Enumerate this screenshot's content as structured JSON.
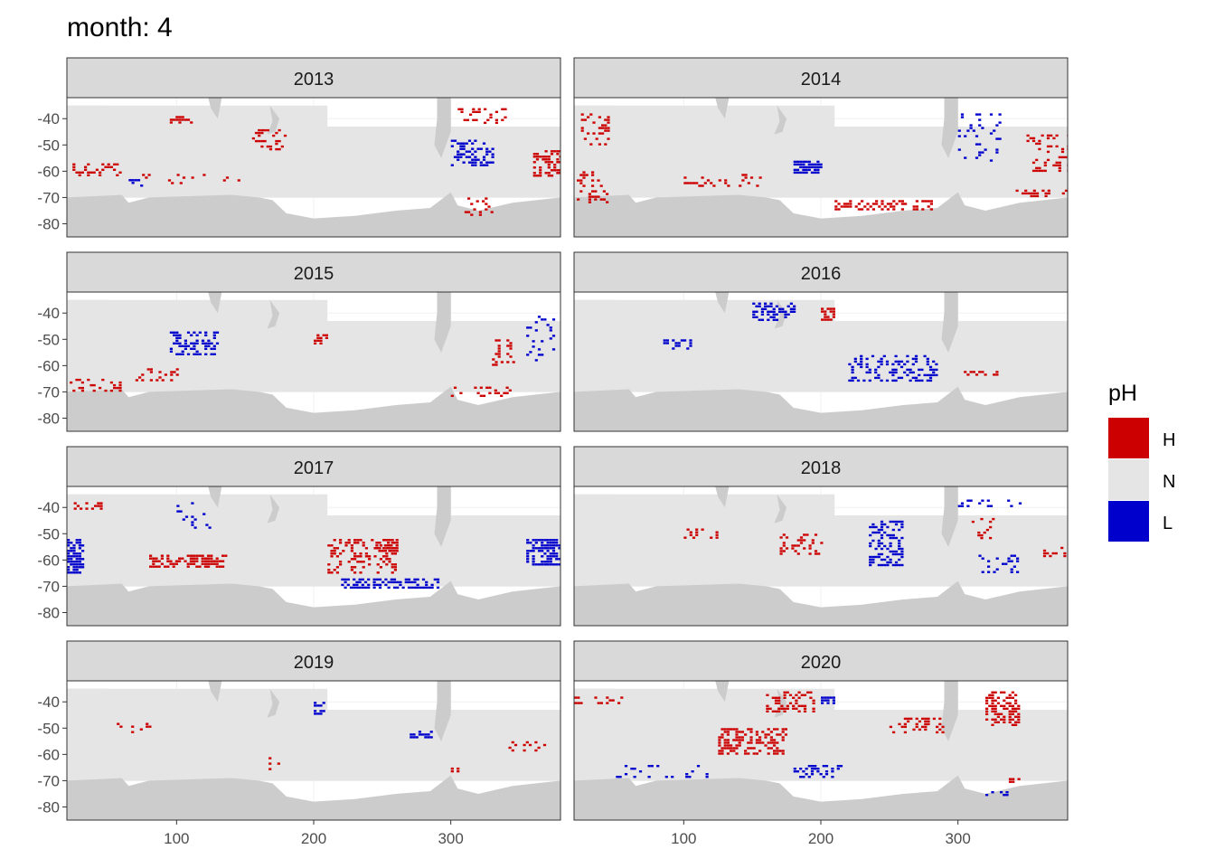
{
  "chart_data": {
    "type": "heatmap",
    "title": "month: 4",
    "facet_var": "year",
    "facets": [
      "2013",
      "2014",
      "2015",
      "2016",
      "2017",
      "2018",
      "2019",
      "2020"
    ],
    "xlim": [
      20,
      380
    ],
    "ylim": [
      -85,
      -32
    ],
    "x_ticks": [
      100,
      200,
      300
    ],
    "x_tick_labels": [
      "100",
      "200",
      "300"
    ],
    "y_ticks": [
      -40,
      -50,
      -60,
      -70,
      -80
    ],
    "y_tick_labels": [
      "-40",
      "-50",
      "-60",
      "-70",
      "-80"
    ],
    "legend": {
      "title": "pH",
      "position": "right",
      "entries": [
        {
          "label": "H",
          "color": "#CC0000"
        },
        {
          "label": "N",
          "color": "#E5E5E5"
        },
        {
          "label": "L",
          "color": "#0000CC"
        }
      ]
    },
    "colors": {
      "ocean_normal": "#E5E5E5",
      "land": "#CCCCCC",
      "no_data": "#FFFFFF",
      "strip": "#D9D9D9",
      "grid": "#F0F0F0",
      "border": "#333333"
    },
    "clusters": [
      {
        "facet": "2013",
        "class": "H",
        "x0": 22,
        "x1": 60,
        "y0": -62,
        "y1": -57,
        "density": 0.35
      },
      {
        "facet": "2013",
        "class": "H",
        "x0": 60,
        "x1": 145,
        "y0": -65,
        "y1": -61,
        "density": 0.12
      },
      {
        "facet": "2013",
        "class": "H",
        "x0": 155,
        "x1": 180,
        "y0": -52,
        "y1": -44,
        "density": 0.3
      },
      {
        "facet": "2013",
        "class": "H",
        "x0": 95,
        "x1": 110,
        "y0": -42,
        "y1": -39,
        "density": 0.3
      },
      {
        "facet": "2013",
        "class": "H",
        "x0": 305,
        "x1": 340,
        "y0": -42,
        "y1": -36,
        "density": 0.25
      },
      {
        "facet": "2013",
        "class": "H",
        "x0": 360,
        "x1": 380,
        "y0": -62,
        "y1": -52,
        "density": 0.45
      },
      {
        "facet": "2013",
        "class": "H",
        "x0": 310,
        "x1": 330,
        "y0": -77,
        "y1": -70,
        "density": 0.3
      },
      {
        "facet": "2013",
        "class": "L",
        "x0": 300,
        "x1": 330,
        "y0": -58,
        "y1": -48,
        "density": 0.35
      },
      {
        "facet": "2013",
        "class": "L",
        "x0": 65,
        "x1": 75,
        "y0": -66,
        "y1": -63,
        "density": 0.3
      },
      {
        "facet": "2014",
        "class": "H",
        "x0": 25,
        "x1": 45,
        "y0": -50,
        "y1": -38,
        "density": 0.25
      },
      {
        "facet": "2014",
        "class": "H",
        "x0": 22,
        "x1": 45,
        "y0": -72,
        "y1": -60,
        "density": 0.25
      },
      {
        "facet": "2014",
        "class": "H",
        "x0": 100,
        "x1": 155,
        "y0": -66,
        "y1": -61,
        "density": 0.18
      },
      {
        "facet": "2014",
        "class": "H",
        "x0": 210,
        "x1": 280,
        "y0": -75,
        "y1": -71,
        "density": 0.4
      },
      {
        "facet": "2014",
        "class": "H",
        "x0": 350,
        "x1": 380,
        "y0": -60,
        "y1": -46,
        "density": 0.25
      },
      {
        "facet": "2014",
        "class": "H",
        "x0": 340,
        "x1": 378,
        "y0": -70,
        "y1": -67,
        "density": 0.3
      },
      {
        "facet": "2014",
        "class": "L",
        "x0": 180,
        "x1": 200,
        "y0": -61,
        "y1": -56,
        "density": 0.8
      },
      {
        "facet": "2014",
        "class": "L",
        "x0": 300,
        "x1": 330,
        "y0": -56,
        "y1": -38,
        "density": 0.12
      },
      {
        "facet": "2015",
        "class": "L",
        "x0": 95,
        "x1": 130,
        "y0": -56,
        "y1": -47,
        "density": 0.4
      },
      {
        "facet": "2015",
        "class": "H",
        "x0": 22,
        "x1": 60,
        "y0": -70,
        "y1": -65,
        "density": 0.22
      },
      {
        "facet": "2015",
        "class": "H",
        "x0": 70,
        "x1": 100,
        "y0": -66,
        "y1": -61,
        "density": 0.3
      },
      {
        "facet": "2015",
        "class": "H",
        "x0": 200,
        "x1": 210,
        "y0": -52,
        "y1": -47,
        "density": 0.3
      },
      {
        "facet": "2015",
        "class": "H",
        "x0": 300,
        "x1": 345,
        "y0": -72,
        "y1": -68,
        "density": 0.2
      },
      {
        "facet": "2015",
        "class": "H",
        "x0": 330,
        "x1": 345,
        "y0": -60,
        "y1": -50,
        "density": 0.3
      },
      {
        "facet": "2015",
        "class": "L",
        "x0": 355,
        "x1": 375,
        "y0": -58,
        "y1": -40,
        "density": 0.15
      },
      {
        "facet": "2016",
        "class": "L",
        "x0": 150,
        "x1": 180,
        "y0": -43,
        "y1": -36,
        "density": 0.5
      },
      {
        "facet": "2016",
        "class": "H",
        "x0": 200,
        "x1": 210,
        "y0": -43,
        "y1": -38,
        "density": 0.7
      },
      {
        "facet": "2016",
        "class": "L",
        "x0": 220,
        "x1": 285,
        "y0": -66,
        "y1": -56,
        "density": 0.35
      },
      {
        "facet": "2016",
        "class": "L",
        "x0": 85,
        "x1": 105,
        "y0": -54,
        "y1": -50,
        "density": 0.25
      },
      {
        "facet": "2016",
        "class": "H",
        "x0": 300,
        "x1": 330,
        "y0": -64,
        "y1": -62,
        "density": 0.3
      },
      {
        "facet": "2017",
        "class": "L",
        "x0": 20,
        "x1": 32,
        "y0": -65,
        "y1": -52,
        "density": 0.6
      },
      {
        "facet": "2017",
        "class": "H",
        "x0": 80,
        "x1": 135,
        "y0": -63,
        "y1": -58,
        "density": 0.6
      },
      {
        "facet": "2017",
        "class": "H",
        "x0": 210,
        "x1": 260,
        "y0": -65,
        "y1": -52,
        "density": 0.3
      },
      {
        "facet": "2017",
        "class": "H",
        "x0": 245,
        "x1": 260,
        "y0": -57,
        "y1": -52,
        "density": 0.6
      },
      {
        "facet": "2017",
        "class": "L",
        "x0": 220,
        "x1": 290,
        "y0": -71,
        "y1": -67,
        "density": 0.5
      },
      {
        "facet": "2017",
        "class": "L",
        "x0": 355,
        "x1": 380,
        "y0": -62,
        "y1": -52,
        "density": 0.6
      },
      {
        "facet": "2017",
        "class": "L",
        "x0": 100,
        "x1": 125,
        "y0": -48,
        "y1": -38,
        "density": 0.1
      },
      {
        "facet": "2017",
        "class": "H",
        "x0": 25,
        "x1": 45,
        "y0": -41,
        "y1": -38,
        "density": 0.3
      },
      {
        "facet": "2018",
        "class": "L",
        "x0": 235,
        "x1": 260,
        "y0": -62,
        "y1": -45,
        "density": 0.4
      },
      {
        "facet": "2018",
        "class": "H",
        "x0": 170,
        "x1": 200,
        "y0": -58,
        "y1": -50,
        "density": 0.25
      },
      {
        "facet": "2018",
        "class": "H",
        "x0": 100,
        "x1": 125,
        "y0": -52,
        "y1": -48,
        "density": 0.25
      },
      {
        "facet": "2018",
        "class": "L",
        "x0": 300,
        "x1": 345,
        "y0": -40,
        "y1": -37,
        "density": 0.3
      },
      {
        "facet": "2018",
        "class": "H",
        "x0": 310,
        "x1": 325,
        "y0": -52,
        "y1": -44,
        "density": 0.2
      },
      {
        "facet": "2018",
        "class": "H",
        "x0": 360,
        "x1": 378,
        "y0": -59,
        "y1": -55,
        "density": 0.3
      },
      {
        "facet": "2018",
        "class": "L",
        "x0": 315,
        "x1": 345,
        "y0": -65,
        "y1": -58,
        "density": 0.15
      },
      {
        "facet": "2019",
        "class": "L",
        "x0": 200,
        "x1": 208,
        "y0": -45,
        "y1": -40,
        "density": 0.5
      },
      {
        "facet": "2019",
        "class": "L",
        "x0": 270,
        "x1": 290,
        "y0": -54,
        "y1": -51,
        "density": 0.5
      },
      {
        "facet": "2019",
        "class": "H",
        "x0": 50,
        "x1": 80,
        "y0": -52,
        "y1": -48,
        "density": 0.15
      },
      {
        "facet": "2019",
        "class": "H",
        "x0": 165,
        "x1": 175,
        "y0": -66,
        "y1": -60,
        "density": 0.25
      },
      {
        "facet": "2019",
        "class": "H",
        "x0": 300,
        "x1": 305,
        "y0": -67,
        "y1": -65,
        "density": 0.6
      },
      {
        "facet": "2019",
        "class": "H",
        "x0": 340,
        "x1": 370,
        "y0": -59,
        "y1": -55,
        "density": 0.18
      },
      {
        "facet": "2020",
        "class": "H",
        "x0": 125,
        "x1": 175,
        "y0": -60,
        "y1": -50,
        "density": 0.45
      },
      {
        "facet": "2020",
        "class": "H",
        "x0": 160,
        "x1": 195,
        "y0": -44,
        "y1": -36,
        "density": 0.35
      },
      {
        "facet": "2020",
        "class": "H",
        "x0": 250,
        "x1": 290,
        "y0": -52,
        "y1": -46,
        "density": 0.3
      },
      {
        "facet": "2020",
        "class": "H",
        "x0": 320,
        "x1": 345,
        "y0": -49,
        "y1": -36,
        "density": 0.45
      },
      {
        "facet": "2020",
        "class": "H",
        "x0": 20,
        "x1": 60,
        "y0": -41,
        "y1": -38,
        "density": 0.3
      },
      {
        "facet": "2020",
        "class": "L",
        "x0": 180,
        "x1": 215,
        "y0": -69,
        "y1": -64,
        "density": 0.35
      },
      {
        "facet": "2020",
        "class": "L",
        "x0": 40,
        "x1": 120,
        "y0": -69,
        "y1": -64,
        "density": 0.12
      },
      {
        "facet": "2020",
        "class": "L",
        "x0": 200,
        "x1": 210,
        "y0": -41,
        "y1": -38,
        "density": 0.7
      },
      {
        "facet": "2020",
        "class": "H",
        "x0": 335,
        "x1": 345,
        "y0": -71,
        "y1": -69,
        "density": 0.6
      },
      {
        "facet": "2020",
        "class": "L",
        "x0": 320,
        "x1": 335,
        "y0": -76,
        "y1": -74,
        "density": 0.4
      }
    ]
  }
}
